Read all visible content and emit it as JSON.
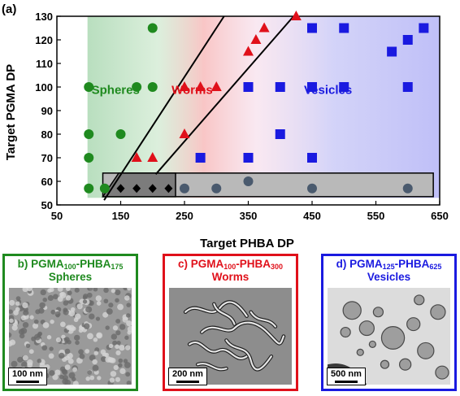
{
  "figure_label": "(a)",
  "chart_data": {
    "type": "scatter",
    "xlabel": "Target PHBA DP",
    "ylabel": "Target PGMA DP",
    "xlim": [
      50,
      650
    ],
    "ylim": [
      50,
      130
    ],
    "x_ticks": [
      50,
      150,
      250,
      350,
      450,
      550,
      650
    ],
    "y_ticks": [
      50,
      60,
      70,
      80,
      90,
      100,
      110,
      120,
      130
    ],
    "grid": false,
    "region_labels": [
      {
        "text": "Spheres",
        "color": "#1f8a1f",
        "x": 142,
        "y": 97
      },
      {
        "text": "Worms",
        "color": "#e0101a",
        "x": 262,
        "y": 97
      },
      {
        "text": "Vesicles",
        "color": "#1a1ae0",
        "x": 475,
        "y": 97
      }
    ],
    "boundary_lines": [
      {
        "from": [
          124,
          52
        ],
        "to": [
          312,
          130
        ]
      },
      {
        "from": [
          205,
          63
        ],
        "to": [
          421,
          130
        ]
      }
    ],
    "mixed_region": {
      "x": [
        122,
        640
      ],
      "y": [
        53.5,
        63.5
      ],
      "dark_end_x": 236
    },
    "series": [
      {
        "phase": "spheres",
        "shape": "circle",
        "color": "#1f8a1f",
        "points": [
          [
            200,
            125
          ],
          [
            100,
            100
          ],
          [
            175,
            100
          ],
          [
            200,
            100
          ],
          [
            100,
            80
          ],
          [
            150,
            80
          ],
          [
            100,
            70
          ],
          [
            100,
            57
          ],
          [
            125,
            57
          ]
        ]
      },
      {
        "phase": "worms",
        "shape": "triangle",
        "color": "#e0101a",
        "points": [
          [
            425,
            130
          ],
          [
            375,
            125
          ],
          [
            362,
            120
          ],
          [
            350,
            115
          ],
          [
            250,
            100
          ],
          [
            275,
            100
          ],
          [
            300,
            100
          ],
          [
            250,
            80
          ],
          [
            175,
            70
          ],
          [
            200,
            70
          ]
        ]
      },
      {
        "phase": "vesicles",
        "shape": "square",
        "color": "#1a1ae0",
        "points": [
          [
            450,
            125
          ],
          [
            500,
            125
          ],
          [
            625,
            125
          ],
          [
            600,
            120
          ],
          [
            575,
            115
          ],
          [
            350,
            100
          ],
          [
            400,
            100
          ],
          [
            450,
            100
          ],
          [
            500,
            100
          ],
          [
            600,
            100
          ],
          [
            400,
            80
          ],
          [
            275,
            70
          ],
          [
            350,
            70
          ],
          [
            450,
            70
          ]
        ]
      },
      {
        "phase": "mixed",
        "shape": "diamond",
        "color": "#000000",
        "points": [
          [
            150,
            57
          ],
          [
            175,
            57
          ],
          [
            200,
            57
          ],
          [
            225,
            57
          ]
        ]
      },
      {
        "phase": "mixed",
        "shape": "circle",
        "color": "#4a5a6e",
        "points": [
          [
            250,
            57
          ],
          [
            300,
            57
          ],
          [
            350,
            60
          ],
          [
            450,
            57
          ],
          [
            600,
            57
          ]
        ]
      }
    ]
  },
  "panels": [
    {
      "letter": "b)",
      "polymer": "PGMA",
      "sub1": "100",
      "block": "-PHBA",
      "sub2": "175",
      "morphology": "Spheres",
      "color": "#1f8a1f",
      "scale": "100 nm"
    },
    {
      "letter": "c)",
      "polymer": "PGMA",
      "sub1": "100",
      "block": "-PHBA",
      "sub2": "300",
      "morphology": "Worms",
      "color": "#e0101a",
      "scale": "200 nm"
    },
    {
      "letter": "d)",
      "polymer": "PGMA",
      "sub1": "125",
      "block": "-PHBA",
      "sub2": "625",
      "morphology": "Vesicles",
      "color": "#1a1ae0",
      "scale": "500 nm"
    }
  ]
}
